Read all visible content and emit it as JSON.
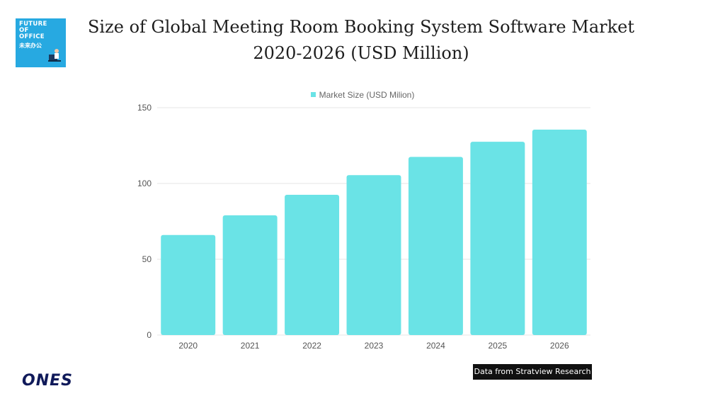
{
  "logo": {
    "line1": "FUTURE",
    "line2": "OF",
    "line3": "OFFICE",
    "line4": "未来办公"
  },
  "title": {
    "line1": "Size of Global Meeting Room Booking System Software Market",
    "line2": "2020-2026 (USD Million)"
  },
  "legend_label": "Market Size (USD Milion)",
  "source": "Data from Stratview Research",
  "brand": "ONES",
  "colors": {
    "bar": "#6ae3e6",
    "grid": "#e6e6e6",
    "axis_text": "#555555"
  },
  "chart_data": {
    "type": "bar",
    "categories": [
      "2020",
      "2021",
      "2022",
      "2023",
      "2024",
      "2025",
      "2026"
    ],
    "series": [
      {
        "name": "Market Size (USD Milion)",
        "values": [
          66,
          79,
          92.5,
          105.5,
          117.5,
          127.5,
          135.5
        ]
      }
    ],
    "title": "Size of Global Meeting Room Booking System Software Market 2020-2026 (USD Million)",
    "ylim": [
      0,
      150
    ],
    "yticks": [
      0,
      50,
      100,
      150
    ],
    "grid": true,
    "legend_position": "top-center"
  }
}
